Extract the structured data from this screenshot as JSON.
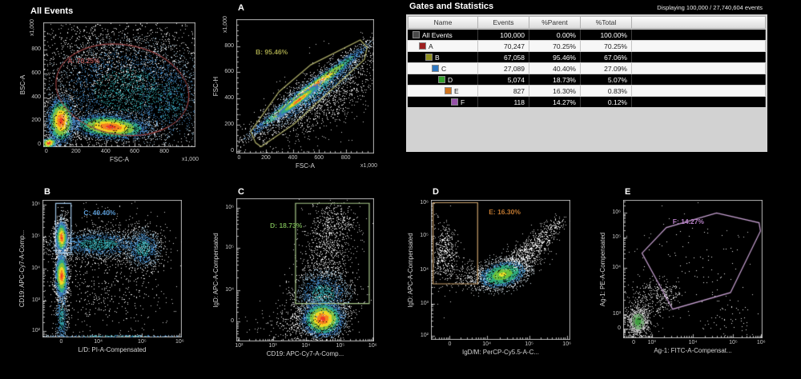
{
  "stats_panel": {
    "title": "Gates and Statistics",
    "displaying": "Displaying 100,000 / 27,740,604 events",
    "columns": [
      "Name",
      "Events",
      "%Parent",
      "%Total",
      ""
    ],
    "rows": [
      {
        "name": "All Events",
        "indent": 0,
        "color": "#4a4a4a",
        "events": "100,000",
        "parent": "0.00%",
        "total": "100.00%",
        "dark": true
      },
      {
        "name": "A",
        "indent": 1,
        "color": "#9e1f1f",
        "events": "70,247",
        "parent": "70.25%",
        "total": "70.25%",
        "dark": false
      },
      {
        "name": "B",
        "indent": 2,
        "color": "#8f8f1f",
        "events": "67,058",
        "parent": "95.46%",
        "total": "67.06%",
        "dark": true
      },
      {
        "name": "C",
        "indent": 3,
        "color": "#2e78c2",
        "events": "27,089",
        "parent": "40.40%",
        "total": "27.09%",
        "dark": false
      },
      {
        "name": "D",
        "indent": 4,
        "color": "#33a02c",
        "events": "5,074",
        "parent": "18.73%",
        "total": "5.07%",
        "dark": true
      },
      {
        "name": "E",
        "indent": 5,
        "color": "#d2751f",
        "events": "827",
        "parent": "16.30%",
        "total": "0.83%",
        "dark": false
      },
      {
        "name": "F",
        "indent": 6,
        "color": "#9550a8",
        "events": "118",
        "parent": "14.27%",
        "total": "0.12%",
        "dark": true
      }
    ]
  },
  "render": {
    "background": "#000000",
    "frame_color": "#b4b4b4",
    "palettes": {
      "hot": [
        [
          0.1,
          "#ec3b24"
        ],
        [
          0.22,
          "#f5821f"
        ],
        [
          0.34,
          "#f2d523"
        ],
        [
          0.48,
          "#7fc241"
        ],
        [
          0.62,
          "#2fa58c"
        ],
        [
          0.78,
          "#3a79b8"
        ],
        [
          0.9,
          "#7fa3c0"
        ],
        [
          1.01,
          "#e6e6e6"
        ]
      ],
      "cool": [
        [
          0.3,
          "#2f9aa0"
        ],
        [
          0.55,
          "#3f7fb5"
        ],
        [
          0.78,
          "#8fb0c5"
        ],
        [
          1.01,
          "#e8e8e8"
        ]
      ],
      "white": [
        [
          0.55,
          "#f2f2f2"
        ],
        [
          1.01,
          "#cfcfcf"
        ]
      ],
      "green-hot": [
        [
          0.12,
          "#e8e02a"
        ],
        [
          0.32,
          "#69c23d"
        ],
        [
          0.54,
          "#2fa87c"
        ],
        [
          0.76,
          "#3f85b5"
        ],
        [
          1.01,
          "#cdd8e0"
        ]
      ],
      "green-dim": [
        [
          0.22,
          "#3f9e3f"
        ],
        [
          0.45,
          "#7fae7f"
        ],
        [
          0.75,
          "#bdbdbd"
        ],
        [
          1.01,
          "#e8e8e8"
        ]
      ]
    }
  },
  "chart_data": [
    {
      "type": "scatter",
      "subtype": "density",
      "title": "All Events",
      "xlabel": "FSC-A",
      "ylabel": "BSC-A",
      "x_multiplier": "x1,000",
      "y_multiplier": "x1,000",
      "x_scale": "linear",
      "y_scale": "linear",
      "xlim": [
        0,
        1000
      ],
      "ylim": [
        0,
        1000
      ],
      "xticks": [
        {
          "p": 0.02,
          "t": "0"
        },
        {
          "p": 0.215,
          "t": "200"
        },
        {
          "p": 0.41,
          "t": "400"
        },
        {
          "p": 0.6,
          "t": "600"
        },
        {
          "p": 0.795,
          "t": "800"
        }
      ],
      "yticks": [
        {
          "p": 0.02,
          "t": "0"
        },
        {
          "p": 0.21,
          "t": "200"
        },
        {
          "p": 0.4,
          "t": "400"
        },
        {
          "p": 0.59,
          "t": "600"
        },
        {
          "p": 0.78,
          "t": "800"
        }
      ],
      "gate": {
        "name": "A",
        "label": "A: 70.25%",
        "shape": "ellipse",
        "cx": 0.52,
        "cy": 0.46,
        "rx": 0.44,
        "ry": 0.36,
        "rot": -10,
        "color": "#9c4343",
        "text_color": "#a85050",
        "label_pos": [
          0.16,
          0.7
        ]
      },
      "clusters": [
        {
          "cx": 0.45,
          "cy": 0.72,
          "sx": 0.33,
          "sy": 0.2,
          "n": 1400,
          "pal": "white"
        },
        {
          "cx": 0.55,
          "cy": 0.46,
          "sx": 0.28,
          "sy": 0.22,
          "n": 2800,
          "pal": "cool"
        },
        {
          "cx": 0.82,
          "cy": 0.38,
          "sx": 0.14,
          "sy": 0.2,
          "n": 700,
          "pal": "cool"
        },
        {
          "cx": 0.035,
          "cy": 0.035,
          "sx": 0.028,
          "sy": 0.022,
          "n": 800,
          "pal": "hot",
          "rot": 35
        },
        {
          "cx": 0.115,
          "cy": 0.215,
          "sx": 0.045,
          "sy": 0.095,
          "n": 2600,
          "pal": "hot"
        },
        {
          "cx": 0.44,
          "cy": 0.165,
          "sx": 0.125,
          "sy": 0.048,
          "n": 3600,
          "pal": "hot",
          "rot": -6
        }
      ]
    },
    {
      "type": "scatter",
      "subtype": "density",
      "title": "A",
      "xlabel": "FSC-A",
      "ylabel": "FSC-H",
      "x_multiplier": "x1,000",
      "y_multiplier": "x1,000",
      "x_scale": "linear",
      "y_scale": "linear",
      "xlim": [
        0,
        1000
      ],
      "ylim": [
        0,
        1000
      ],
      "xticks": [
        {
          "p": 0.02,
          "t": "0"
        },
        {
          "p": 0.215,
          "t": "200"
        },
        {
          "p": 0.41,
          "t": "400"
        },
        {
          "p": 0.6,
          "t": "600"
        },
        {
          "p": 0.795,
          "t": "800"
        }
      ],
      "yticks": [
        {
          "p": 0.02,
          "t": "0"
        },
        {
          "p": 0.215,
          "t": "200"
        },
        {
          "p": 0.41,
          "t": "400"
        },
        {
          "p": 0.605,
          "t": "600"
        },
        {
          "p": 0.8,
          "t": "800"
        }
      ],
      "gate": {
        "name": "B",
        "label": "B: 95.46%",
        "shape": "polygon",
        "points": [
          [
            0.14,
            0.08
          ],
          [
            0.105,
            0.165
          ],
          [
            0.31,
            0.46
          ],
          [
            0.54,
            0.66
          ],
          [
            0.9,
            0.845
          ],
          [
            0.95,
            0.79
          ],
          [
            0.93,
            0.7
          ],
          [
            0.42,
            0.22
          ],
          [
            0.18,
            0.05
          ]
        ],
        "color": "#b0b06a",
        "text_color": "#a0a048",
        "label_pos": [
          0.14,
          0.76
        ]
      },
      "clusters": [
        {
          "cx": 0.62,
          "cy": 0.4,
          "sx": 0.25,
          "sy": 0.11,
          "n": 1000,
          "pal": "white",
          "rot": 33
        },
        {
          "cx": 0.55,
          "cy": 0.46,
          "sx": 0.24,
          "sy": 0.05,
          "n": 2000,
          "pal": "cool",
          "rot": 37
        },
        {
          "cx": 0.52,
          "cy": 0.47,
          "sx": 0.26,
          "sy": 0.022,
          "n": 3200,
          "pal": "hot",
          "rot": 38
        },
        {
          "cx": 0.45,
          "cy": 0.4,
          "sx": 0.1,
          "sy": 0.013,
          "n": 2200,
          "pal": "hot",
          "rot": 38
        }
      ]
    },
    {
      "type": "scatter",
      "subtype": "density",
      "title": "B",
      "xlabel": "L/D: PI-A-Compensated",
      "ylabel": "CD19: APC-Cy7-A-Comp...",
      "x_scale": "log",
      "y_scale": "log",
      "xticks": [
        {
          "p": 0.135,
          "t": "0"
        },
        {
          "p": 0.4,
          "t": "10⁴"
        },
        {
          "p": 0.715,
          "t": "10⁵"
        },
        {
          "p": 0.985,
          "t": "10⁶"
        }
      ],
      "yticks": [
        {
          "p": 0.045,
          "t": "10²"
        },
        {
          "p": 0.27,
          "t": "10³"
        },
        {
          "p": 0.5,
          "t": "10⁴"
        },
        {
          "p": 0.735,
          "t": "10⁵"
        },
        {
          "p": 0.965,
          "t": "10⁶"
        }
      ],
      "gate": {
        "name": "C",
        "label": "C: 40.40%",
        "shape": "rect",
        "x0": 0.095,
        "y0": 0.615,
        "x1": 0.205,
        "y1": 0.975,
        "color": "#9dc3e6",
        "text_color": "#5b9bd5",
        "label_pos": [
          0.295,
          0.915
        ]
      },
      "clusters": [
        {
          "cx": 0.45,
          "cy": 0.47,
          "sx": 0.26,
          "sy": 0.26,
          "n": 800,
          "pal": "white"
        },
        {
          "cx": 0.4,
          "cy": 0.68,
          "sx": 0.18,
          "sy": 0.05,
          "n": 1600,
          "pal": "cool"
        },
        {
          "cx": 0.72,
          "cy": 0.65,
          "sx": 0.065,
          "sy": 0.075,
          "n": 900,
          "pal": "cool"
        },
        {
          "cx": 0.135,
          "cy": 0.6,
          "sx": 0.02,
          "sy": 0.16,
          "n": 700,
          "pal": "cool"
        },
        {
          "cx": 0.135,
          "cy": 0.15,
          "sx": 0.022,
          "sy": 0.12,
          "n": 500,
          "pal": "cool"
        },
        {
          "cx": 0.5,
          "cy": 0.012,
          "sx": 0.33,
          "sy": 0.004,
          "n": 260,
          "pal": "cool"
        },
        {
          "cx": 0.135,
          "cy": 0.73,
          "sx": 0.02,
          "sy": 0.055,
          "n": 2400,
          "pal": "hot"
        },
        {
          "cx": 0.135,
          "cy": 0.45,
          "sx": 0.022,
          "sy": 0.075,
          "n": 2400,
          "pal": "hot"
        }
      ]
    },
    {
      "type": "scatter",
      "subtype": "density",
      "title": "C",
      "xlabel": "CD19: APC-Cy7-A-Comp...",
      "ylabel": "IgD: APC-A-Compensated",
      "x_scale": "log",
      "y_scale": "log",
      "xticks": [
        {
          "p": 0.02,
          "t": "10²"
        },
        {
          "p": 0.265,
          "t": "10³"
        },
        {
          "p": 0.505,
          "t": "10⁴"
        },
        {
          "p": 0.755,
          "t": "10⁵"
        },
        {
          "p": 0.99,
          "t": "10⁶"
        }
      ],
      "yticks": [
        {
          "p": 0.14,
          "t": "0"
        },
        {
          "p": 0.355,
          "t": "10⁴"
        },
        {
          "p": 0.655,
          "t": "10⁵"
        },
        {
          "p": 0.935,
          "t": "10⁶"
        }
      ],
      "gate": {
        "name": "D",
        "label": "D: 18.73%",
        "shape": "rect",
        "x0": 0.43,
        "y0": 0.265,
        "x1": 0.965,
        "y1": 0.965,
        "color": "#a9c98a",
        "text_color": "#70a84e",
        "label_pos": [
          0.245,
          0.815
        ]
      },
      "clusters": [
        {
          "cx": 0.66,
          "cy": 0.62,
          "sx": 0.09,
          "sy": 0.19,
          "n": 700,
          "pal": "white"
        },
        {
          "cx": 0.72,
          "cy": 0.83,
          "sx": 0.1,
          "sy": 0.09,
          "n": 300,
          "pal": "white"
        },
        {
          "cx": 0.5,
          "cy": 0.13,
          "sx": 0.15,
          "sy": 0.08,
          "n": 450,
          "pal": "white"
        },
        {
          "cx": 0.63,
          "cy": 0.33,
          "sx": 0.105,
          "sy": 0.09,
          "n": 1500,
          "pal": "cool"
        },
        {
          "cx": 0.625,
          "cy": 0.16,
          "sx": 0.075,
          "sy": 0.062,
          "n": 3200,
          "pal": "hot"
        }
      ]
    },
    {
      "type": "scatter",
      "subtype": "density",
      "title": "D",
      "xlabel": "IgD/M: PerCP-Cy5.5-A-C...",
      "ylabel": "IgD: APC-A-Compensated",
      "x_scale": "log",
      "y_scale": "log",
      "xticks": [
        {
          "p": 0.135,
          "t": "0"
        },
        {
          "p": 0.4,
          "t": "10⁴"
        },
        {
          "p": 0.705,
          "t": "10⁵"
        },
        {
          "p": 0.975,
          "t": "10⁶"
        }
      ],
      "yticks": [
        {
          "p": 0.03,
          "t": "10²"
        },
        {
          "p": 0.26,
          "t": "10³"
        },
        {
          "p": 0.5,
          "t": "10⁴"
        },
        {
          "p": 0.745,
          "t": "10⁵"
        },
        {
          "p": 0.975,
          "t": "10⁶"
        }
      ],
      "gate": {
        "name": "E",
        "label": "E: 16.30%",
        "shape": "rect",
        "x0": 0.015,
        "y0": 0.4,
        "x1": 0.335,
        "y1": 0.98,
        "color": "#c9a06a",
        "text_color": "#c07830",
        "label_pos": [
          0.415,
          0.92
        ]
      },
      "clusters": [
        {
          "cx": 0.1,
          "cy": 0.62,
          "sx": 0.05,
          "sy": 0.115,
          "n": 450,
          "pal": "white"
        },
        {
          "cx": 0.33,
          "cy": 0.45,
          "sx": 0.09,
          "sy": 0.05,
          "n": 260,
          "pal": "white"
        },
        {
          "cx": 0.64,
          "cy": 0.57,
          "sx": 0.085,
          "sy": 0.05,
          "n": 500,
          "pal": "white",
          "rot": 30
        },
        {
          "cx": 0.77,
          "cy": 0.7,
          "sx": 0.075,
          "sy": 0.04,
          "n": 300,
          "pal": "white",
          "rot": 32
        },
        {
          "cx": 0.88,
          "cy": 0.82,
          "sx": 0.05,
          "sy": 0.028,
          "n": 120,
          "pal": "white",
          "rot": 30
        },
        {
          "cx": 0.51,
          "cy": 0.47,
          "sx": 0.085,
          "sy": 0.045,
          "n": 2400,
          "pal": "green-hot",
          "rot": 14
        }
      ]
    },
    {
      "type": "scatter",
      "subtype": "density",
      "title": "E",
      "xlabel": "Ag-1: FITC-A-Compensat...",
      "ylabel": "Ag-1: PE-A-Compensated",
      "x_scale": "log",
      "y_scale": "log",
      "xticks": [
        {
          "p": 0.075,
          "t": "0"
        },
        {
          "p": 0.205,
          "t": "10³"
        },
        {
          "p": 0.5,
          "t": "10⁴"
        },
        {
          "p": 0.79,
          "t": "10⁵"
        },
        {
          "p": 0.99,
          "t": "10⁶"
        }
      ],
      "yticks": [
        {
          "p": 0.07,
          "t": "0"
        },
        {
          "p": 0.175,
          "t": "10³"
        },
        {
          "p": 0.51,
          "t": "10⁴"
        },
        {
          "p": 0.73,
          "t": "10⁵"
        },
        {
          "p": 0.905,
          "t": "10⁶"
        }
      ],
      "gate": {
        "name": "F",
        "label": "F: 14.27%",
        "shape": "polygon",
        "points": [
          [
            0.135,
            0.615
          ],
          [
            0.31,
            0.8
          ],
          [
            0.67,
            0.905
          ],
          [
            0.975,
            0.835
          ],
          [
            0.985,
            0.775
          ],
          [
            0.77,
            0.33
          ],
          [
            0.355,
            0.21
          ]
        ],
        "color": "#c9a2d4",
        "text_color": "#b57fc4",
        "label_pos": [
          0.355,
          0.85
        ]
      },
      "clusters": [
        {
          "cx": 0.2,
          "cy": 0.27,
          "sx": 0.09,
          "sy": 0.09,
          "n": 260,
          "pal": "white"
        },
        {
          "cx": 0.32,
          "cy": 0.33,
          "sx": 0.05,
          "sy": 0.05,
          "n": 90,
          "pal": "white"
        },
        {
          "cx": 0.52,
          "cy": 0.52,
          "sx": 0.27,
          "sy": 0.22,
          "n": 120,
          "pal": "white"
        },
        {
          "cx": 0.8,
          "cy": 0.14,
          "sx": 0.13,
          "sy": 0.07,
          "n": 50,
          "pal": "white"
        },
        {
          "cx": 0.105,
          "cy": 0.125,
          "sx": 0.038,
          "sy": 0.05,
          "n": 1000,
          "pal": "green-dim"
        }
      ]
    }
  ]
}
